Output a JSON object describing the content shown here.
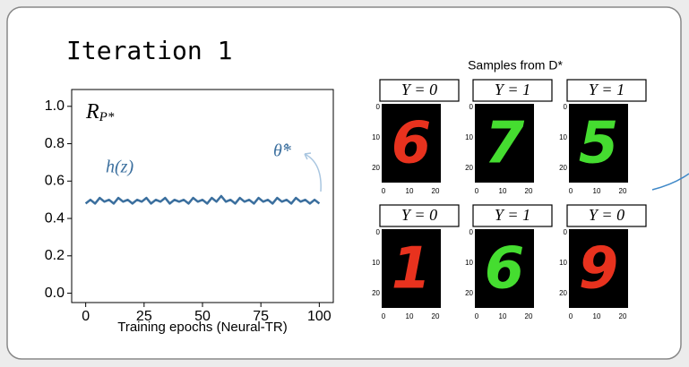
{
  "slide_title": "Iteration 1",
  "chart_data": {
    "type": "line",
    "x": [
      0,
      2,
      4,
      6,
      8,
      10,
      12,
      14,
      16,
      18,
      20,
      22,
      24,
      26,
      28,
      30,
      32,
      34,
      36,
      38,
      40,
      42,
      44,
      46,
      48,
      50,
      52,
      54,
      56,
      58,
      60,
      62,
      64,
      66,
      68,
      70,
      72,
      74,
      76,
      78,
      80,
      82,
      84,
      86,
      88,
      90,
      92,
      94,
      96,
      98,
      100
    ],
    "values": [
      0.48,
      0.5,
      0.48,
      0.51,
      0.49,
      0.5,
      0.48,
      0.51,
      0.49,
      0.5,
      0.48,
      0.5,
      0.49,
      0.51,
      0.48,
      0.5,
      0.49,
      0.51,
      0.48,
      0.5,
      0.49,
      0.5,
      0.48,
      0.51,
      0.49,
      0.5,
      0.48,
      0.51,
      0.49,
      0.52,
      0.49,
      0.5,
      0.48,
      0.51,
      0.49,
      0.5,
      0.48,
      0.51,
      0.49,
      0.5,
      0.48,
      0.51,
      0.49,
      0.5,
      0.48,
      0.51,
      0.49,
      0.5,
      0.48,
      0.5,
      0.48
    ],
    "color": "#3b6f9e",
    "x_label": "Training epochs (Neural-TR)",
    "xlim": [
      -6,
      106
    ],
    "xticks": [
      0,
      25,
      50,
      75,
      100
    ],
    "ylim": [
      -0.05,
      1.09
    ],
    "yticks": [
      {
        "value": 0,
        "label": "0.0"
      },
      {
        "value": 0.2,
        "label": "0.2"
      },
      {
        "value": 0.4,
        "label": "0.4"
      },
      {
        "value": 0.6,
        "label": "0.6"
      },
      {
        "value": 0.8,
        "label": "0.8"
      },
      {
        "value": 1,
        "label": "1.0"
      }
    ],
    "annotations": {
      "risk": {
        "text": "R",
        "subscript": "P*"
      },
      "h": "h(z)",
      "theta": "θ̂*"
    }
  },
  "samples": {
    "title": "Samples from D*",
    "ticks": [
      "0",
      "10",
      "20"
    ],
    "panels": [
      {
        "label": "Y = 0",
        "digit": "6",
        "color": "#e8321e"
      },
      {
        "label": "Y = 1",
        "digit": "7",
        "color": "#45dd30"
      },
      {
        "label": "Y = 1",
        "digit": "5",
        "color": "#45dd30"
      },
      {
        "label": "Y = 0",
        "digit": "1",
        "color": "#e8321e"
      },
      {
        "label": "Y = 1",
        "digit": "6",
        "color": "#45dd30"
      },
      {
        "label": "Y = 0",
        "digit": "9",
        "color": "#e8321e"
      }
    ]
  }
}
